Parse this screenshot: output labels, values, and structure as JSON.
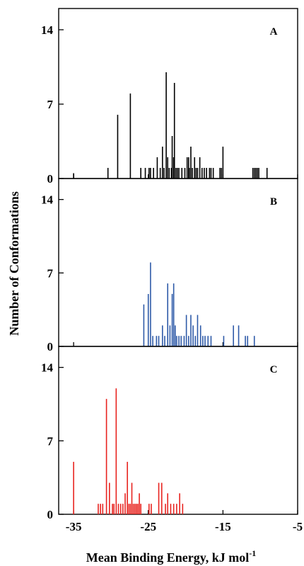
{
  "chart_data": [
    {
      "type": "bar",
      "panel_label": "A",
      "color": "#000000",
      "ylim": [
        0,
        16
      ],
      "yticks": [
        0,
        7,
        14
      ],
      "ytick_labels": [
        "0",
        "7",
        "14"
      ],
      "x": [
        -35.0,
        -30.4,
        -29.1,
        -27.4,
        -26.0,
        -25.4,
        -24.9,
        -24.7,
        -24.3,
        -23.8,
        -23.4,
        -23.1,
        -22.9,
        -22.6,
        -22.4,
        -22.2,
        -21.9,
        -21.8,
        -21.6,
        -21.5,
        -21.3,
        -21.1,
        -20.9,
        -20.5,
        -20.1,
        -19.8,
        -19.6,
        -19.5,
        -19.3,
        -19.1,
        -18.8,
        -18.6,
        -18.4,
        -18.1,
        -17.8,
        -17.5,
        -17.2,
        -16.8,
        -16.6,
        -16.3,
        -15.4,
        -15.2,
        -15.0,
        -11.0,
        -10.8,
        -10.6,
        -10.4,
        -10.2,
        -9.1
      ],
      "values": [
        0.5,
        1,
        6,
        8,
        1,
        1,
        1,
        1,
        1,
        2,
        1,
        3,
        1,
        10,
        2,
        1,
        1,
        4,
        2,
        9,
        1,
        1,
        1,
        1,
        1,
        2,
        2,
        1,
        3,
        1,
        2,
        1,
        1,
        2,
        1,
        1,
        1,
        1,
        1,
        1,
        1,
        1,
        3,
        1,
        1,
        1,
        1,
        1,
        1
      ]
    },
    {
      "type": "bar",
      "panel_label": "B",
      "color": "#2e5aa8",
      "ylim": [
        0,
        16
      ],
      "yticks": [
        0,
        7,
        14
      ],
      "ytick_labels": [
        "0",
        "7",
        "14"
      ],
      "x": [
        -25.6,
        -25.0,
        -24.7,
        -24.4,
        -23.9,
        -23.6,
        -23.1,
        -22.8,
        -22.4,
        -22.1,
        -21.8,
        -21.6,
        -21.4,
        -21.2,
        -20.9,
        -20.6,
        -20.2,
        -19.9,
        -19.6,
        -19.3,
        -19.0,
        -18.7,
        -18.4,
        -18.0,
        -17.7,
        -17.4,
        -17.0,
        -16.6,
        -14.9,
        -13.6,
        -12.9,
        -12.0,
        -11.7,
        -10.8
      ],
      "values": [
        4,
        5,
        8,
        1,
        1,
        1,
        2,
        1,
        6,
        2,
        5,
        6,
        2,
        1,
        1,
        1,
        1,
        3,
        1,
        3,
        2,
        1,
        3,
        2,
        1,
        1,
        1,
        1,
        1,
        2,
        2,
        1,
        1,
        1
      ]
    },
    {
      "type": "bar",
      "panel_label": "C",
      "color": "#e8231f",
      "ylim": [
        0,
        16
      ],
      "yticks": [
        0,
        7,
        14
      ],
      "ytick_labels": [
        "0",
        "7",
        "14"
      ],
      "x": [
        -35.0,
        -31.7,
        -31.4,
        -31.1,
        -30.6,
        -30.2,
        -29.8,
        -29.6,
        -29.3,
        -29.0,
        -28.7,
        -28.4,
        -28.1,
        -27.8,
        -27.6,
        -27.4,
        -27.2,
        -27.0,
        -26.8,
        -26.6,
        -26.4,
        -26.2,
        -26.0,
        -24.9,
        -24.6,
        -23.6,
        -23.2,
        -22.7,
        -22.4,
        -22.0,
        -21.6,
        -21.2,
        -20.8,
        -20.4
      ],
      "values": [
        5,
        1,
        1,
        1,
        11,
        3,
        1,
        1,
        12,
        1,
        1,
        1,
        2,
        5,
        1,
        1,
        3,
        1,
        1,
        1,
        1,
        2,
        1,
        1,
        1,
        3,
        3,
        1,
        2,
        1,
        1,
        1,
        2,
        1
      ]
    }
  ],
  "x_axis": {
    "xlim": [
      -37,
      -5
    ],
    "ticks": [
      -35,
      -25,
      -15,
      -5
    ],
    "tick_labels": [
      "-35",
      "-25",
      "-15",
      "-5"
    ],
    "label": "Mean Binding Energy, kJ mol",
    "label_superscript": "-1"
  },
  "y_axis": {
    "label": "Number of Conformations"
  }
}
